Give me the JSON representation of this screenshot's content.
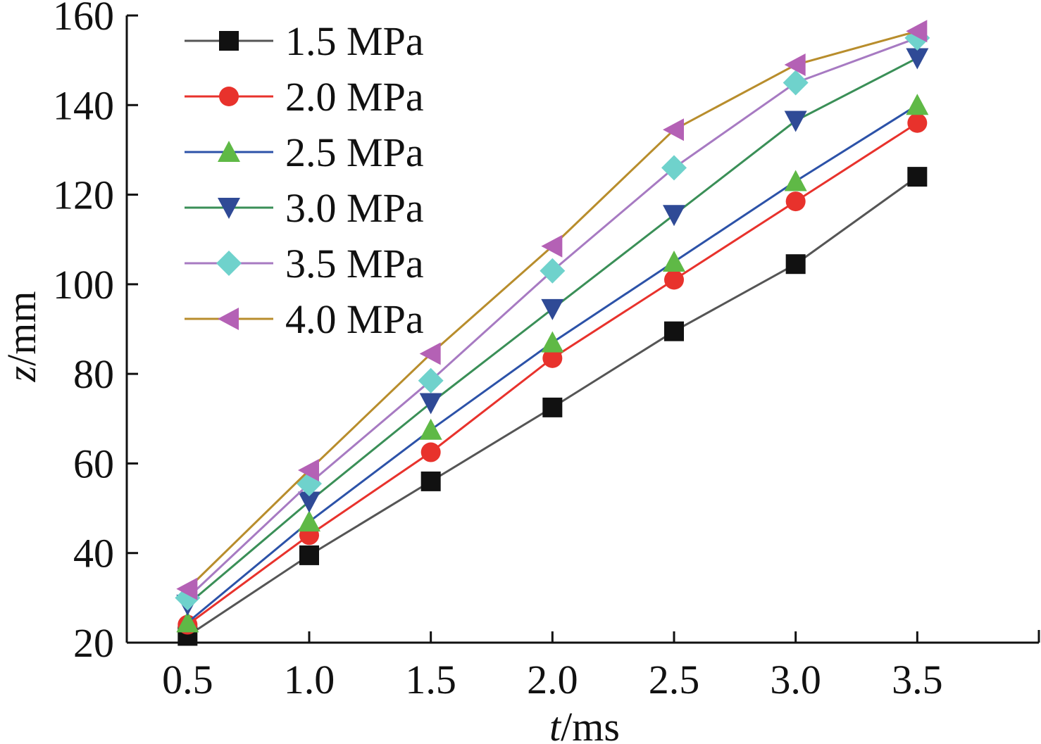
{
  "chart_data": {
    "type": "line",
    "x": [
      0.5,
      1.0,
      1.5,
      2.0,
      2.5,
      3.0,
      3.5
    ],
    "x_tick_labels": [
      "0.5",
      "1.0",
      "1.5",
      "2.0",
      "2.5",
      "3.0",
      "3.5"
    ],
    "y_ticks": [
      20,
      40,
      60,
      80,
      100,
      120,
      140,
      160
    ],
    "y_tick_labels": [
      "20",
      "40",
      "60",
      "80",
      "100",
      "120",
      "140",
      "160"
    ],
    "xlim": [
      0.25,
      4.0
    ],
    "ylim": [
      20,
      160
    ],
    "xlabel": {
      "var": "t",
      "unit": "/ms"
    },
    "ylabel": {
      "var": "z",
      "unit": "/mm"
    },
    "grid": false,
    "legend_position": "top-left",
    "series": [
      {
        "name": "1.5 MPa",
        "line_color": "#555555",
        "marker_color": "#111111",
        "marker": "square",
        "values": [
          21.5,
          39.5,
          56.0,
          72.5,
          89.5,
          104.5,
          124.0
        ]
      },
      {
        "name": "2.0 MPa",
        "line_color": "#e8322c",
        "marker_color": "#e8322c",
        "marker": "circle",
        "values": [
          24.0,
          44.0,
          62.5,
          83.5,
          101.0,
          118.5,
          136.0
        ]
      },
      {
        "name": "2.5 MPa",
        "line_color": "#2c52a8",
        "marker_color": "#5fb946",
        "marker": "triangle-up",
        "values": [
          24.5,
          47.0,
          67.5,
          87.0,
          105.0,
          123.0,
          140.0
        ]
      },
      {
        "name": "3.0 MPa",
        "line_color": "#3a8f57",
        "marker_color": "#2f4a96",
        "marker": "triangle-down",
        "values": [
          28.5,
          51.5,
          73.5,
          94.5,
          115.5,
          136.5,
          150.5
        ]
      },
      {
        "name": "3.5 MPa",
        "line_color": "#a77ac2",
        "marker_color": "#6fd2cc",
        "marker": "diamond",
        "values": [
          30.0,
          55.5,
          78.5,
          103.0,
          126.0,
          145.0,
          155.0
        ]
      },
      {
        "name": "4.0 MPa",
        "line_color": "#b88d2c",
        "marker_color": "#b461b5",
        "marker": "triangle-left",
        "values": [
          32.0,
          58.5,
          84.5,
          108.5,
          134.5,
          149.0,
          156.5
        ]
      }
    ]
  }
}
